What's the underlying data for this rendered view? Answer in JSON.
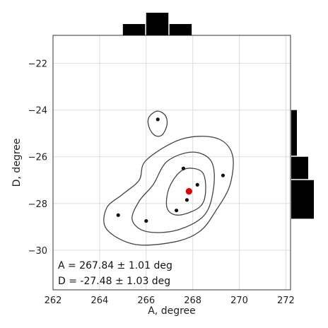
{
  "chart_data": {
    "type": "scatter",
    "title": "",
    "xlabel": "A, degree",
    "ylabel": "D, degree",
    "xlim": [
      262,
      272.2
    ],
    "ylim": [
      -31.7,
      -20.8
    ],
    "xticks": [
      "262",
      "264",
      "266",
      "268",
      "270",
      "272"
    ],
    "yticks": [
      "−22",
      "−24",
      "−26",
      "−28",
      "−30"
    ],
    "xtick_values": [
      262,
      264,
      266,
      268,
      270,
      272
    ],
    "ytick_values": [
      -22,
      -24,
      -26,
      -28,
      -30
    ],
    "grid": true,
    "points": [
      {
        "x": 266.5,
        "y": -24.4
      },
      {
        "x": 264.8,
        "y": -28.5
      },
      {
        "x": 266.0,
        "y": -28.75
      },
      {
        "x": 267.3,
        "y": -28.3
      },
      {
        "x": 267.6,
        "y": -26.5
      },
      {
        "x": 268.2,
        "y": -27.2
      },
      {
        "x": 267.75,
        "y": -27.85
      },
      {
        "x": 269.3,
        "y": -26.8
      }
    ],
    "estimate": {
      "x": 267.84,
      "y": -27.48,
      "color": "#e00000"
    },
    "contours": [
      [
        [
          266.45,
          -24.05
        ],
        [
          266.8,
          -24.2
        ],
        [
          266.9,
          -24.6
        ],
        [
          266.7,
          -25.05
        ],
        [
          266.4,
          -25.1
        ],
        [
          266.15,
          -24.8
        ],
        [
          266.1,
          -24.35
        ]
      ],
      [
        [
          266.0,
          -26.15
        ],
        [
          267.5,
          -25.25
        ],
        [
          269.0,
          -25.2
        ],
        [
          269.7,
          -25.9
        ],
        [
          269.6,
          -27.2
        ],
        [
          269.0,
          -28.3
        ],
        [
          268.3,
          -29.2
        ],
        [
          267.2,
          -29.65
        ],
        [
          265.5,
          -29.75
        ],
        [
          264.3,
          -29.1
        ],
        [
          264.3,
          -28.2
        ],
        [
          265.0,
          -27.6
        ],
        [
          265.7,
          -27.0
        ]
      ],
      [
        [
          266.9,
          -26.2
        ],
        [
          268.0,
          -25.8
        ],
        [
          268.8,
          -26.2
        ],
        [
          268.9,
          -27.3
        ],
        [
          268.5,
          -28.5
        ],
        [
          267.3,
          -29.15
        ],
        [
          266.0,
          -29.2
        ],
        [
          265.4,
          -28.7
        ],
        [
          265.7,
          -27.9
        ],
        [
          266.3,
          -27.2
        ]
      ],
      [
        [
          267.6,
          -26.55
        ],
        [
          268.4,
          -26.65
        ],
        [
          268.55,
          -27.5
        ],
        [
          268.3,
          -28.15
        ],
        [
          267.4,
          -28.5
        ],
        [
          266.9,
          -28.2
        ],
        [
          267.0,
          -27.3
        ]
      ]
    ],
    "hist_x": {
      "edges": [
        265.0,
        266.0,
        267.0,
        268.0
      ],
      "counts": [
        3,
        6,
        3
      ]
    },
    "hist_y": {
      "edges": [
        -24.0,
        -26.0,
        -27.0,
        -28.7
      ],
      "counts": [
        1,
        3,
        4
      ]
    },
    "annotations": [
      "A = 267.84 ± 1.01 deg",
      "D = -27.48 ± 1.03 deg"
    ],
    "colors": {
      "points": "#111111",
      "estimate": "#e00000",
      "contour": "#444444",
      "hist": "#000000",
      "grid": "#dddddd",
      "frame": "#333333"
    }
  }
}
